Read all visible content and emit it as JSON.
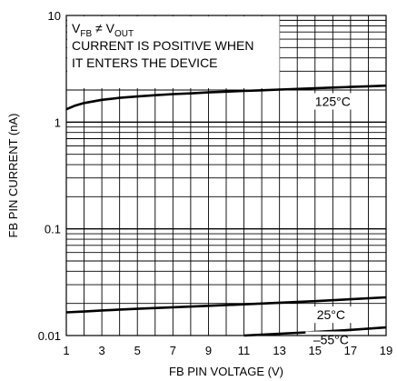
{
  "chart_data": {
    "type": "line",
    "title": "",
    "xlabel": "FB PIN VOLTAGE (V)",
    "ylabel": "FB PIN CURRENT (nA)",
    "xlim": [
      1,
      19
    ],
    "ylim": [
      0.01,
      10
    ],
    "yscale": "log",
    "grid": true,
    "x_ticks": [
      1,
      3,
      5,
      7,
      9,
      11,
      13,
      15,
      17,
      19
    ],
    "x_tick_labels": [
      "1",
      "3",
      "5",
      "7",
      "9",
      "11",
      "13",
      "15",
      "17",
      "19"
    ],
    "y_ticks": [
      0.01,
      0.1,
      1,
      10
    ],
    "y_tick_labels": [
      "0.01",
      "0.1",
      "1",
      "10"
    ],
    "annotation": {
      "sym_v": "V",
      "sub_fb": "FB",
      "neq": " ≠ ",
      "sub_out": "OUT",
      "line2": "CURRENT IS POSITIVE WHEN",
      "line3": "IT ENTERS THE DEVICE"
    },
    "series": [
      {
        "name": "125°C",
        "color": "#000000",
        "x": [
          1,
          1.5,
          2,
          3,
          4,
          5,
          6,
          7,
          8,
          9,
          10,
          11,
          12,
          13,
          14,
          15,
          16,
          17,
          18,
          19
        ],
        "y": [
          1.32,
          1.43,
          1.51,
          1.62,
          1.69,
          1.74,
          1.79,
          1.83,
          1.86,
          1.9,
          1.93,
          1.96,
          1.99,
          2.02,
          2.05,
          2.08,
          2.11,
          2.14,
          2.17,
          2.2
        ]
      },
      {
        "name": "25°C",
        "color": "#000000",
        "x": [
          1,
          2,
          3,
          5,
          7,
          9,
          11,
          13,
          15,
          17,
          19
        ],
        "y": [
          0.0165,
          0.0168,
          0.0172,
          0.0178,
          0.0184,
          0.019,
          0.0196,
          0.0203,
          0.021,
          0.0219,
          0.0228
        ]
      },
      {
        "name": "–55°C",
        "color": "#000000",
        "x": [
          11,
          13,
          15,
          17,
          19
        ],
        "y": [
          0.01,
          0.0104,
          0.0108,
          0.0113,
          0.0119
        ]
      }
    ]
  }
}
